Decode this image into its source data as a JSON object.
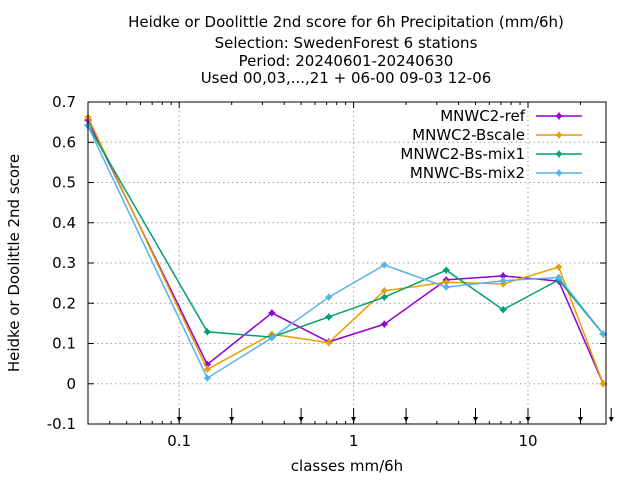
{
  "chart_data": {
    "type": "line",
    "title_lines": [
      "Heidke or Doolittle 2nd score  for 6h Precipitation (mm/6h)",
      "Selection: SwedenForest      6 stations",
      "Period: 20240601-20240630",
      "Used 00,03,...,21 + 06-00 09-03 12-06"
    ],
    "xlabel": "classes mm/6h",
    "ylabel": "Heidke or Doolittle 2nd score",
    "x_scale": "log",
    "xlim": [
      0.03,
      28
    ],
    "ylim": [
      -0.1,
      0.7
    ],
    "x_ticks": [
      0.1,
      1,
      10
    ],
    "x_tick_labels": [
      "0.1",
      "1",
      "10"
    ],
    "y_ticks": [
      -0.1,
      0,
      0.1,
      0.2,
      0.3,
      0.4,
      0.5,
      0.6,
      0.7
    ],
    "y_tick_labels": [
      "-0.1",
      "0",
      "0.1",
      "0.2",
      "0.3",
      "0.4",
      "0.5",
      "0.6",
      "0.7"
    ],
    "grid": true,
    "legend_position": "top-right",
    "class_thresholds": [
      0.1,
      0.2,
      0.5,
      1,
      2,
      5,
      10,
      20,
      30
    ],
    "x": [
      0.03,
      0.145,
      0.34,
      0.72,
      1.5,
      3.4,
      7.2,
      15,
      27
    ],
    "series": [
      {
        "name": "MNWC2-ref",
        "color": "#9400d3",
        "values": [
          0.655,
          0.048,
          0.176,
          0.104,
          0.148,
          0.258,
          0.268,
          0.255,
          0.0
        ]
      },
      {
        "name": "MNWC2-Bscale",
        "color": "#e69f00",
        "values": [
          0.662,
          0.036,
          0.123,
          0.102,
          0.231,
          0.252,
          0.248,
          0.29,
          0.0
        ]
      },
      {
        "name": "MNWC2-Bs-mix1",
        "color": "#009e73",
        "values": [
          0.642,
          0.129,
          0.116,
          0.166,
          0.215,
          0.282,
          0.184,
          0.258,
          0.123
        ]
      },
      {
        "name": "MNWC-Bs-mix2",
        "color": "#56b4e9",
        "values": [
          0.64,
          0.014,
          0.114,
          0.215,
          0.295,
          0.24,
          0.256,
          0.264,
          0.124
        ]
      }
    ]
  }
}
